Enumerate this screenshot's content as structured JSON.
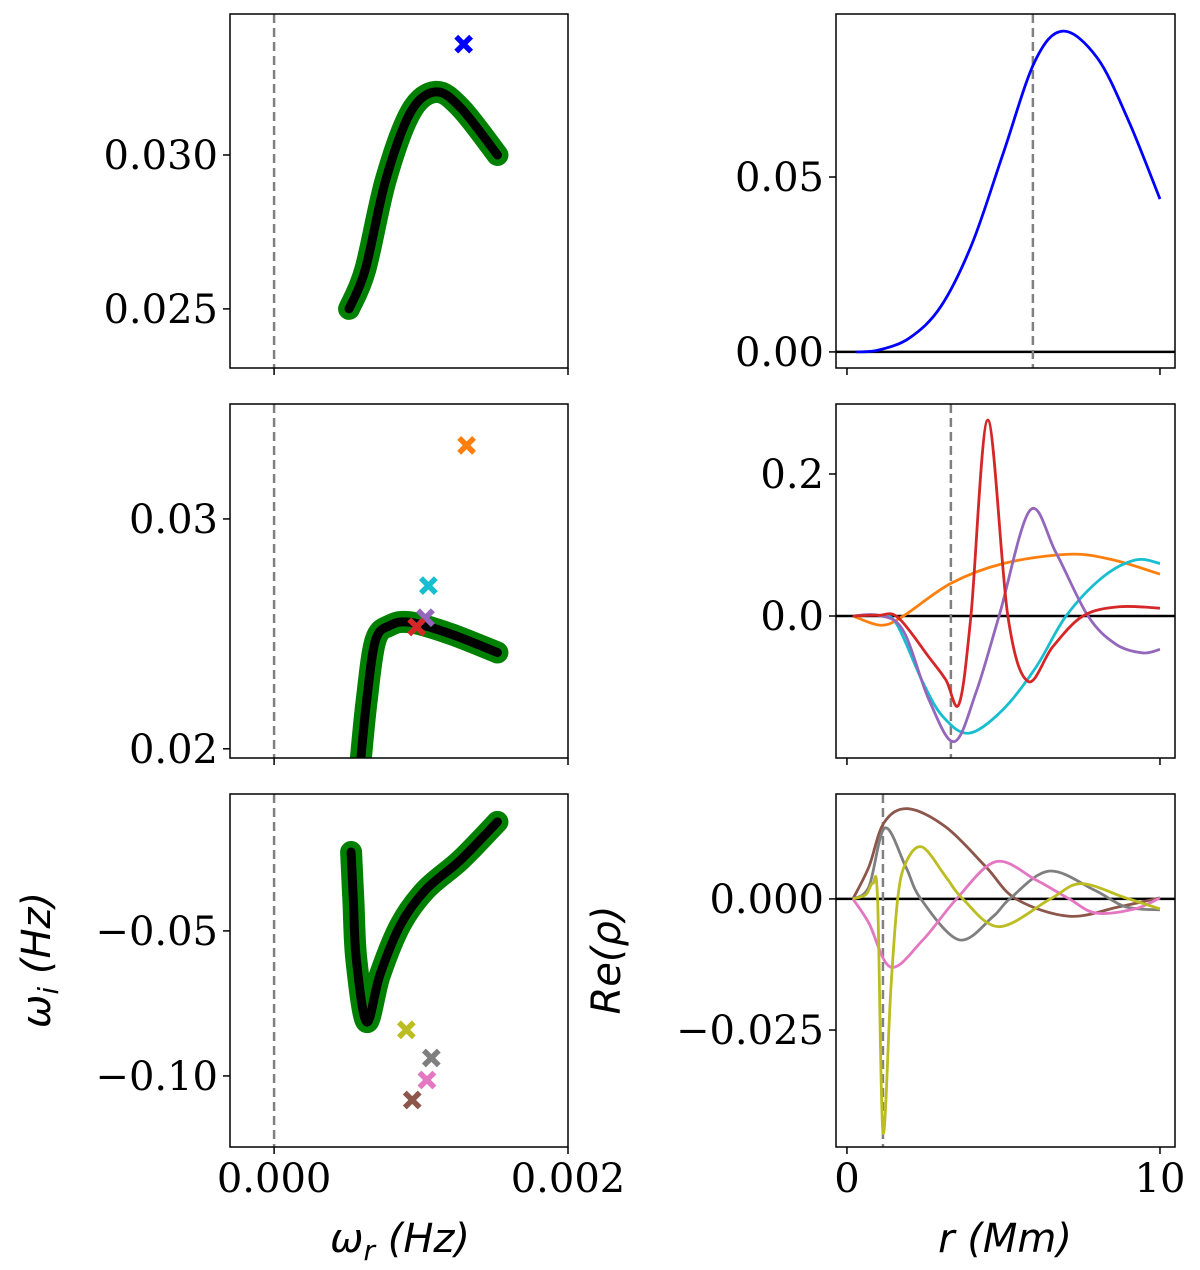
{
  "chart_data": [
    {
      "type": "line",
      "panel": "top-left",
      "xlim": [
        -0.0003,
        0.002
      ],
      "ylim": [
        0.02308,
        0.03458
      ],
      "xticks": [
        0.0,
        0.002
      ],
      "xtick_labels": [],
      "yticks": [
        0.025,
        0.03
      ],
      "ytick_labels": [
        "0.025",
        "0.030"
      ],
      "vline": 0.0,
      "curve_color": "#008000",
      "curve": {
        "x": [
          0.00051,
          0.00062,
          0.00076,
          0.00093,
          0.0011,
          0.00127,
          0.00152
        ],
        "y": [
          0.025,
          0.02627,
          0.02919,
          0.0314,
          0.03205,
          0.03153,
          0.03
        ]
      },
      "markers": [
        {
          "x": 0.00129,
          "y": 0.0336,
          "color": "#0000ff"
        }
      ]
    },
    {
      "type": "line",
      "panel": "top-right",
      "xlim": [
        -0.35,
        10.48
      ],
      "ylim": [
        -0.0046,
        0.0966
      ],
      "xticks": [
        0,
        10
      ],
      "xtick_labels": [],
      "yticks": [
        0.0,
        0.05
      ],
      "ytick_labels": [
        "0.00",
        "0.05"
      ],
      "vline": 5.94,
      "hline": 0,
      "series": [
        {
          "color": "#0000ff",
          "x": [
            0.3,
            1,
            2,
            3,
            4,
            5,
            6,
            6.9,
            8,
            9,
            10
          ],
          "y": [
            0,
            0.0005,
            0.004,
            0.013,
            0.031,
            0.057,
            0.083,
            0.0917,
            0.084,
            0.066,
            0.0437
          ]
        }
      ]
    },
    {
      "type": "line",
      "panel": "middle-left",
      "xlim": [
        -0.0003,
        0.002
      ],
      "ylim": [
        0.0196,
        0.035
      ],
      "xticks": [
        0.0,
        0.002
      ],
      "xtick_labels": [],
      "yticks": [
        0.02,
        0.03
      ],
      "ytick_labels": [
        "0.02",
        "0.03"
      ],
      "vline": 0.0,
      "curve_color": "#008000",
      "curve": {
        "x": [
          0.00059,
          0.00063,
          0.00069,
          0.00079,
          0.00093,
          0.0012,
          0.00152
        ],
        "y": [
          0.01956,
          0.0221,
          0.02472,
          0.02537,
          0.0255,
          0.025,
          0.02419
        ]
      },
      "markers": [
        {
          "x": 0.00131,
          "y": 0.0332,
          "color": "#ff7f0e"
        },
        {
          "x": 0.00105,
          "y": 0.0271,
          "color": "#17becf"
        },
        {
          "x": 0.00103,
          "y": 0.0257,
          "color": "#9467bd"
        },
        {
          "x": 0.00097,
          "y": 0.0253,
          "color": "#d62728"
        }
      ]
    },
    {
      "type": "line",
      "panel": "middle-right",
      "xlim": [
        -0.35,
        10.48
      ],
      "ylim": [
        -0.2,
        0.2986
      ],
      "xticks": [
        0,
        10
      ],
      "xtick_labels": [],
      "yticks": [
        0.0,
        0.2
      ],
      "ytick_labels": [
        "0.0",
        "0.2"
      ],
      "vline": 3.32,
      "hline": 0,
      "series": [
        {
          "color": "#ff7f0e",
          "x": [
            0.19,
            1.09,
            1.8,
            3.32,
            5,
            7.1,
            8.5,
            10
          ],
          "y": [
            0,
            -0.013,
            0,
            0.046,
            0.074,
            0.087,
            0.079,
            0.059
          ]
        },
        {
          "color": "#17becf",
          "x": [
            0.19,
            1,
            1.57,
            2.43,
            3.07,
            3.9,
            4.98,
            6.04,
            7.0,
            8.18,
            9.23,
            10
          ],
          "y": [
            0,
            0.001,
            -0.01,
            -0.094,
            -0.142,
            -0.165,
            -0.132,
            -0.072,
            0,
            0.055,
            0.079,
            0.074
          ]
        },
        {
          "color": "#9467bd",
          "x": [
            0.19,
            1,
            1.79,
            2.62,
            3.42,
            4.12,
            4.86,
            5.85,
            6.68,
            7.7,
            8.6,
            9.46,
            10
          ],
          "y": [
            0,
            0.001,
            -0.02,
            -0.118,
            -0.177,
            -0.108,
            0,
            0.149,
            0.089,
            0,
            -0.04,
            -0.052,
            -0.047
          ]
        },
        {
          "color": "#d62728",
          "x": [
            0.19,
            1,
            1.63,
            2.62,
            3.16,
            3.58,
            3.96,
            4.5,
            5.14,
            5.78,
            6.58,
            7.54,
            8.69,
            10
          ],
          "y": [
            0,
            0.001,
            -0.002,
            -0.058,
            -0.09,
            -0.124,
            0,
            0.276,
            0,
            -0.092,
            -0.043,
            0,
            0.013,
            0.011
          ]
        }
      ]
    },
    {
      "type": "line",
      "panel": "bottom-left",
      "xlim": [
        -0.0003,
        0.002
      ],
      "ylim": [
        -0.1245,
        -0.0028
      ],
      "xticks": [
        0.0,
        0.002
      ],
      "xtick_labels": [
        "0.000",
        "0.002"
      ],
      "yticks": [
        -0.1,
        -0.05
      ],
      "ytick_labels": [
        "−0.10",
        "−0.05"
      ],
      "xlabel": "ω",
      "xlabel_sub": "r",
      "xlabel_unit": " (Hz)",
      "ylabel": "ω",
      "ylabel_sub": "i",
      "ylabel_unit": " (Hz)",
      "vline": 0.0,
      "curve_color": "#008000",
      "curve": {
        "x": [
          0.000524,
          0.00054,
          0.00056,
          0.00063,
          0.00072,
          0.00086,
          0.00103,
          0.00127,
          0.00152
        ],
        "y": [
          -0.0228,
          -0.04,
          -0.06,
          -0.0814,
          -0.0652,
          -0.0479,
          -0.0359,
          -0.0255,
          -0.0124
        ]
      },
      "markers": [
        {
          "x": 0.0009,
          "y": -0.0841,
          "color": "#bcbd22"
        },
        {
          "x": 0.00107,
          "y": -0.0938,
          "color": "#7f7f7f"
        },
        {
          "x": 0.00104,
          "y": -0.1014,
          "color": "#e377c2"
        },
        {
          "x": 0.00094,
          "y": -0.1083,
          "color": "#8c564b"
        }
      ]
    },
    {
      "type": "line",
      "panel": "bottom-right",
      "xlim": [
        -0.35,
        10.48
      ],
      "ylim": [
        -0.0473,
        0.02
      ],
      "xticks": [
        0,
        10
      ],
      "xtick_labels": [
        "0",
        "10"
      ],
      "yticks": [
        -0.025,
        0.0
      ],
      "ytick_labels": [
        "−0.025",
        "0.000"
      ],
      "xlabel": "r",
      "xlabel_unit": " (Mm)",
      "ylabel": "Re(ρ)",
      "vline": 1.15,
      "hline": 0,
      "series": [
        {
          "color": "#8c564b",
          "x": [
            0.19,
            0.7,
            1.18,
            1.95,
            3.16,
            4.44,
            5.4,
            7.1,
            8.7,
            10
          ],
          "y": [
            0,
            0.0061,
            0.0145,
            0.0172,
            0.0137,
            0.0061,
            0,
            -0.0033,
            -0.0015,
            0.0002
          ]
        },
        {
          "color": "#7f7f7f",
          "x": [
            0.19,
            0.7,
            1.21,
            1.88,
            2.36,
            3.58,
            4.66,
            5.2,
            6.45,
            7.9,
            8.9,
            10
          ],
          "y": [
            0,
            0.0023,
            0.0135,
            0.0061,
            0,
            -0.0078,
            -0.0034,
            0,
            0.0053,
            0.0017,
            -0.0015,
            -0.0021
          ]
        },
        {
          "color": "#e377c2",
          "x": [
            0.19,
            0.7,
            1.4,
            2.43,
            3.5,
            4.76,
            6.04,
            7.1,
            7.96,
            9.2,
            10
          ],
          "y": [
            0,
            -0.0046,
            -0.013,
            -0.0078,
            0,
            0.0071,
            0.0036,
            0,
            -0.0027,
            -0.0019,
            0.0002
          ]
        },
        {
          "color": "#bcbd22",
          "x": [
            0.19,
            0.6,
            0.83,
            0.98,
            1.15,
            1.4,
            1.62,
            1.88,
            2.4,
            3.16,
            3.7,
            4.86,
            6.5,
            7.48,
            8.9,
            10
          ],
          "y": [
            0,
            0.0008,
            0.003,
            -0.0003,
            -0.0445,
            -0.0174,
            0,
            0.0069,
            0.0099,
            0.0042,
            0,
            -0.0053,
            0,
            0.0029,
            0.0002,
            -0.0019
          ]
        }
      ]
    }
  ]
}
